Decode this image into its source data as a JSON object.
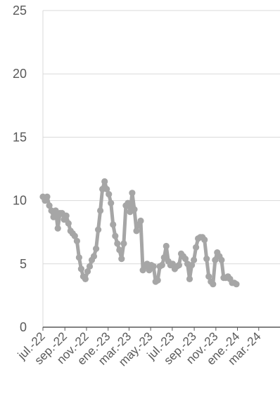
{
  "chart_data": {
    "type": "line",
    "title": "",
    "xlabel": "",
    "ylabel": "",
    "ylim": [
      0,
      25
    ],
    "yticks": [
      0,
      5,
      10,
      15,
      20,
      25
    ],
    "grid": "horizontal",
    "x_start": "2022-07-01",
    "x_end": "2024-04-30",
    "x_tick_labels": [
      {
        "label": "jul.-22",
        "date": "2022-07-01"
      },
      {
        "label": "sep.-22",
        "date": "2022-09-01"
      },
      {
        "label": "nov.-22",
        "date": "2022-11-01"
      },
      {
        "label": "ene.-23",
        "date": "2023-01-01"
      },
      {
        "label": "mar.-23",
        "date": "2023-03-01"
      },
      {
        "label": "may.-23",
        "date": "2023-05-01"
      },
      {
        "label": "jul.-23",
        "date": "2023-07-01"
      },
      {
        "label": "sep.-23",
        "date": "2023-09-01"
      },
      {
        "label": "nov.-23",
        "date": "2023-11-01"
      },
      {
        "label": "ene.-24",
        "date": "2024-01-01"
      },
      {
        "label": "mar.-24",
        "date": "2024-03-01"
      }
    ],
    "series": [
      {
        "name": "",
        "color": "#a6a6a6",
        "points": [
          [
            "2022-07-01",
            10.3
          ],
          [
            "2022-07-07",
            10.0
          ],
          [
            "2022-07-13",
            10.3
          ],
          [
            "2022-07-19",
            9.6
          ],
          [
            "2022-07-25",
            9.2
          ],
          [
            "2022-07-31",
            8.7
          ],
          [
            "2022-08-06",
            9.2
          ],
          [
            "2022-08-12",
            7.8
          ],
          [
            "2022-08-18",
            9.0
          ],
          [
            "2022-08-24",
            9.0
          ],
          [
            "2022-08-30",
            8.5
          ],
          [
            "2022-09-05",
            8.8
          ],
          [
            "2022-09-11",
            8.2
          ],
          [
            "2022-09-17",
            7.6
          ],
          [
            "2022-09-23",
            7.4
          ],
          [
            "2022-09-29",
            7.2
          ],
          [
            "2022-10-05",
            6.8
          ],
          [
            "2022-10-11",
            5.5
          ],
          [
            "2022-10-17",
            4.6
          ],
          [
            "2022-10-23",
            4.0
          ],
          [
            "2022-10-29",
            3.8
          ],
          [
            "2022-11-04",
            4.4
          ],
          [
            "2022-11-10",
            4.8
          ],
          [
            "2022-11-16",
            5.3
          ],
          [
            "2022-11-22",
            5.6
          ],
          [
            "2022-11-28",
            6.2
          ],
          [
            "2022-12-04",
            7.7
          ],
          [
            "2022-12-10",
            9.2
          ],
          [
            "2022-12-16",
            10.9
          ],
          [
            "2022-12-22",
            11.5
          ],
          [
            "2022-12-28",
            10.9
          ],
          [
            "2023-01-03",
            10.5
          ],
          [
            "2023-01-09",
            9.8
          ],
          [
            "2023-01-15",
            8.1
          ],
          [
            "2023-01-21",
            7.2
          ],
          [
            "2023-01-27",
            6.6
          ],
          [
            "2023-02-02",
            6.1
          ],
          [
            "2023-02-08",
            5.4
          ],
          [
            "2023-02-14",
            6.6
          ],
          [
            "2023-02-20",
            9.6
          ],
          [
            "2023-02-26",
            9.8
          ],
          [
            "2023-03-04",
            9.1
          ],
          [
            "2023-03-10",
            10.6
          ],
          [
            "2023-03-16",
            9.3
          ],
          [
            "2023-03-22",
            7.6
          ],
          [
            "2023-03-28",
            8.1
          ],
          [
            "2023-04-03",
            8.4
          ],
          [
            "2023-04-09",
            4.5
          ],
          [
            "2023-04-15",
            4.8
          ],
          [
            "2023-04-21",
            5.0
          ],
          [
            "2023-04-27",
            4.5
          ],
          [
            "2023-05-03",
            4.9
          ],
          [
            "2023-05-09",
            4.8
          ],
          [
            "2023-05-15",
            3.6
          ],
          [
            "2023-05-21",
            3.7
          ],
          [
            "2023-05-27",
            4.8
          ],
          [
            "2023-06-02",
            4.9
          ],
          [
            "2023-06-08",
            5.5
          ],
          [
            "2023-06-14",
            6.4
          ],
          [
            "2023-06-20",
            5.2
          ],
          [
            "2023-06-26",
            4.9
          ],
          [
            "2023-07-02",
            5.0
          ],
          [
            "2023-07-08",
            4.6
          ],
          [
            "2023-07-14",
            4.8
          ],
          [
            "2023-07-20",
            4.9
          ],
          [
            "2023-07-26",
            5.8
          ],
          [
            "2023-08-01",
            5.6
          ],
          [
            "2023-08-07",
            5.4
          ],
          [
            "2023-08-13",
            5.0
          ],
          [
            "2023-08-19",
            3.8
          ],
          [
            "2023-08-25",
            4.9
          ],
          [
            "2023-08-31",
            5.3
          ],
          [
            "2023-09-06",
            6.3
          ],
          [
            "2023-09-12",
            7.0
          ],
          [
            "2023-09-18",
            7.1
          ],
          [
            "2023-09-24",
            7.1
          ],
          [
            "2023-09-30",
            6.9
          ],
          [
            "2023-10-06",
            5.4
          ],
          [
            "2023-10-12",
            4.0
          ],
          [
            "2023-10-18",
            3.6
          ],
          [
            "2023-10-24",
            3.4
          ],
          [
            "2023-10-30",
            5.3
          ],
          [
            "2023-11-05",
            5.9
          ],
          [
            "2023-11-11",
            5.6
          ],
          [
            "2023-11-17",
            5.3
          ],
          [
            "2023-11-23",
            3.9
          ],
          [
            "2023-11-29",
            3.9
          ],
          [
            "2023-12-05",
            4.0
          ],
          [
            "2023-12-11",
            3.8
          ],
          [
            "2023-12-17",
            3.5
          ],
          [
            "2023-12-23",
            3.5
          ],
          [
            "2023-12-29",
            3.4
          ]
        ]
      }
    ]
  }
}
